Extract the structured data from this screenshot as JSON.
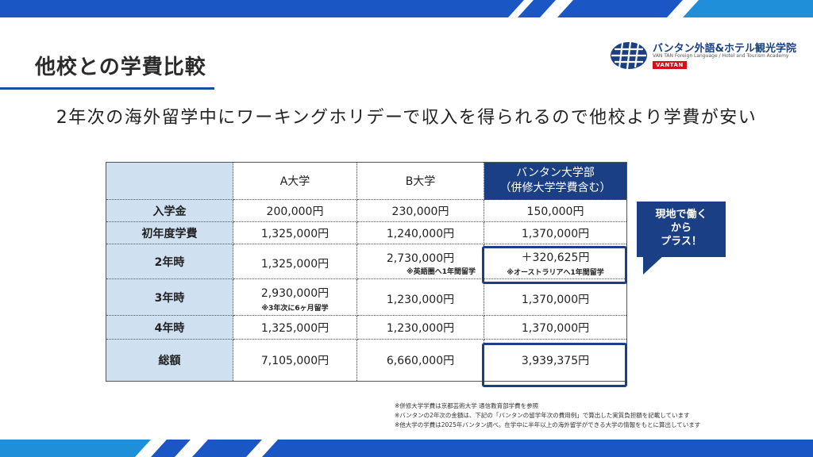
{
  "title": "他校との学費比較",
  "logo": {
    "name": "バンタン外語&ホテル観光学院",
    "subtitle": "VAN TAN Foreign Language / Hotel and Tourism Academy",
    "badge": "VANTAN"
  },
  "subtitle": "2年次の海外留学中にワーキングホリデーで収入を得られるので他校より学費が安い",
  "table": {
    "headers": {
      "a": "A大学",
      "b": "B大学",
      "vantan_line1": "バンタン大学部",
      "vantan_line2": "（併修大学学費含む）"
    },
    "rows": [
      {
        "label": "入学金",
        "a": "200,000円",
        "b": "230,000円",
        "v": "150,000円"
      },
      {
        "label": "初年度学費",
        "a": "1,325,000円",
        "b": "1,240,000円",
        "v": "1,370,000円"
      },
      {
        "label": "2年時",
        "a": "1,325,000円",
        "b": "2,730,000円",
        "b_note": "※英語圏へ1年間留学",
        "v": "＋320,625円",
        "v_note": "※オーストラリアへ1年間留学"
      },
      {
        "label": "3年時",
        "a": "2,930,000円",
        "a_note": "※3年次に6ヶ月留学",
        "b": "1,230,000円",
        "v": "1,370,000円"
      },
      {
        "label": "4年時",
        "a": "1,325,000円",
        "b": "1,230,000円",
        "v": "1,370,000円"
      },
      {
        "label": "総額",
        "a": "7,105,000円",
        "b": "6,660,000円",
        "v": "3,939,375円"
      }
    ]
  },
  "callout": {
    "line1": "現地で働く",
    "line2": "から",
    "line3": "プラス！"
  },
  "footnotes": [
    "※併修大学学費は京都芸術大学 通信教育部学費を参照",
    "※バンタンの2年次の金額は、下記の「バンタンの留学年次の費用例」で算出した実質負担額を記載しています",
    "※他大学の学費は2025年バンタン調べ。在学中に半年以上の海外留学ができる大学の情報をもとに算出しています"
  ],
  "colors": {
    "brand_navy": "#1b3f85",
    "header_light_blue": "#cfe0f0",
    "band_blue": "#1a56c4",
    "logo_badge_red": "#d0121b"
  }
}
